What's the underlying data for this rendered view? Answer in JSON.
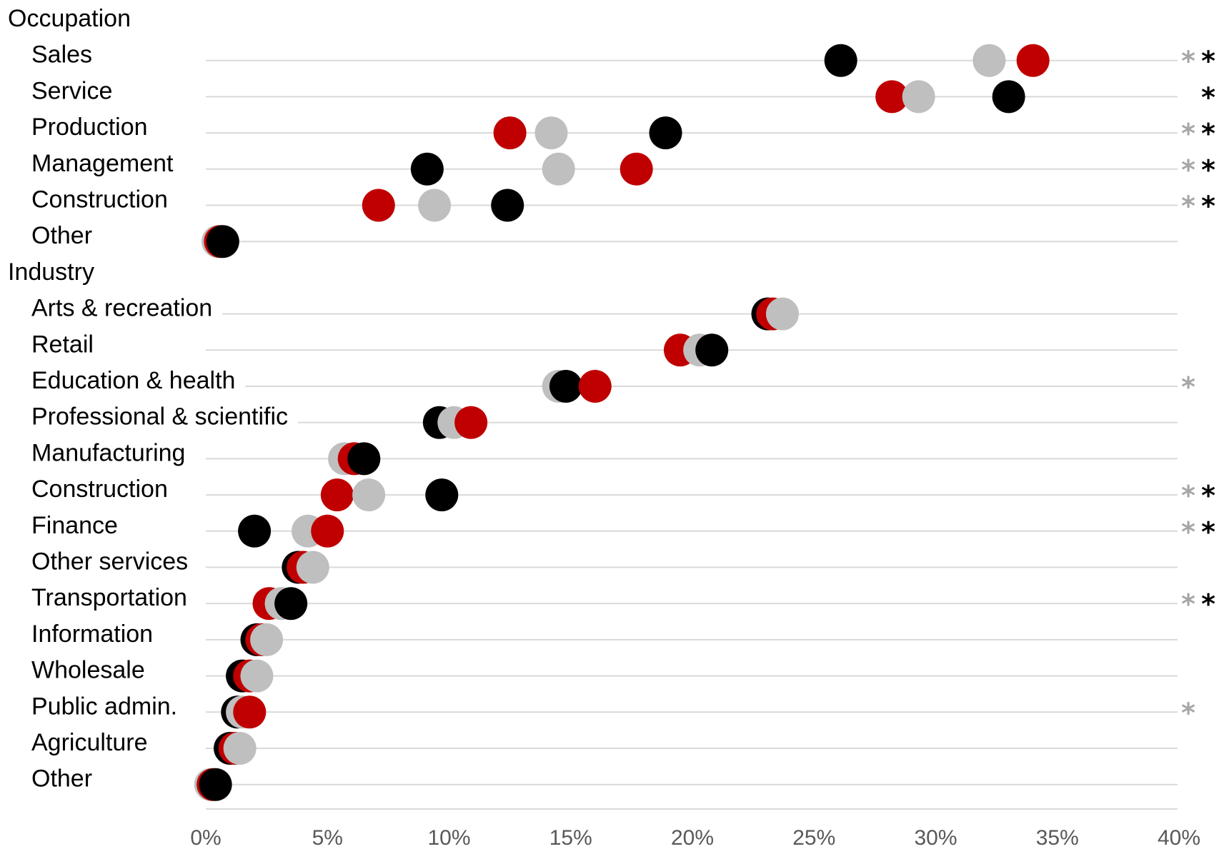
{
  "chart_data": {
    "type": "scatter",
    "orientation": "horizontal-dot-plot",
    "xlim": [
      0,
      40
    ],
    "xticks": [
      "0%",
      "5%",
      "10%",
      "15%",
      "20%",
      "25%",
      "30%",
      "35%",
      "40%"
    ],
    "xtick_values": [
      0,
      5,
      10,
      15,
      20,
      25,
      30,
      35,
      40
    ],
    "grid": "horizontal",
    "legend": "none",
    "colors": {
      "red": "#c00000",
      "gray": "#bfbfbf",
      "black": "#000000",
      "gray_star": "#a6a6a6",
      "black_star": "#000000"
    },
    "groups": [
      {
        "label": "Occupation",
        "rows": [
          {
            "label": "Sales",
            "red": 34.0,
            "gray": 32.2,
            "black": 26.1,
            "star_gray": "*",
            "star_black": "*"
          },
          {
            "label": "Service",
            "red": 28.2,
            "gray": 29.3,
            "black": 33.0,
            "star_gray": "",
            "star_black": "*"
          },
          {
            "label": "Production",
            "red": 12.5,
            "gray": 14.2,
            "black": 18.9,
            "star_gray": "*",
            "star_black": "*"
          },
          {
            "label": "Management",
            "red": 17.7,
            "gray": 14.5,
            "black": 9.1,
            "star_gray": "*",
            "star_black": "*"
          },
          {
            "label": "Construction",
            "red": 7.1,
            "gray": 9.4,
            "black": 12.4,
            "star_gray": "*",
            "star_black": "*"
          },
          {
            "label": "Other",
            "red": 0.6,
            "gray": 0.5,
            "black": 0.7,
            "star_gray": "",
            "star_black": ""
          }
        ]
      },
      {
        "label": "Industry",
        "rows": [
          {
            "label": "Arts & recreation",
            "red": 23.3,
            "gray": 23.7,
            "black": 23.1,
            "star_gray": "",
            "star_black": ""
          },
          {
            "label": "Retail",
            "red": 19.5,
            "gray": 20.3,
            "black": 20.8,
            "star_gray": "",
            "star_black": ""
          },
          {
            "label": "Education & health",
            "red": 16.0,
            "gray": 14.5,
            "black": 14.8,
            "star_gray": "*",
            "star_black": ""
          },
          {
            "label": "Professional & scientific",
            "red": 10.9,
            "gray": 10.2,
            "black": 9.6,
            "star_gray": "",
            "star_black": ""
          },
          {
            "label": "Manufacturing",
            "red": 6.1,
            "gray": 5.7,
            "black": 6.5,
            "star_gray": "",
            "star_black": ""
          },
          {
            "label": "Construction",
            "red": 5.4,
            "gray": 6.7,
            "black": 9.7,
            "star_gray": "*",
            "star_black": "*"
          },
          {
            "label": "Finance",
            "red": 5.0,
            "gray": 4.2,
            "black": 2.0,
            "star_gray": "*",
            "star_black": "*"
          },
          {
            "label": "Other services",
            "red": 4.0,
            "gray": 4.4,
            "black": 3.8,
            "star_gray": "",
            "star_black": ""
          },
          {
            "label": "Transportation",
            "red": 2.6,
            "gray": 3.1,
            "black": 3.5,
            "star_gray": "*",
            "star_black": "*"
          },
          {
            "label": "Information",
            "red": 2.3,
            "gray": 2.5,
            "black": 2.1,
            "star_gray": "",
            "star_black": ""
          },
          {
            "label": "Wholesale",
            "red": 1.8,
            "gray": 2.1,
            "black": 1.5,
            "star_gray": "",
            "star_black": ""
          },
          {
            "label": "Public admin.",
            "red": 1.8,
            "gray": 1.5,
            "black": 1.3,
            "star_gray": "*",
            "star_black": ""
          },
          {
            "label": "Agriculture",
            "red": 1.2,
            "gray": 1.4,
            "black": 1.0,
            "star_gray": "",
            "star_black": ""
          },
          {
            "label": "Other",
            "red": 0.3,
            "gray": 0.2,
            "black": 0.4,
            "star_gray": "",
            "star_black": ""
          }
        ]
      }
    ]
  }
}
